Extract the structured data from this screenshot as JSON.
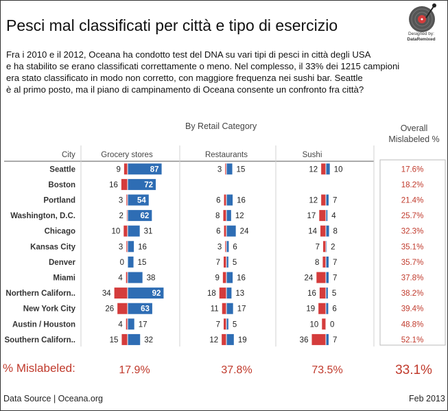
{
  "header": {
    "title": "Pesci mal classificati per città e tipo di esercizio",
    "logo_line1": "Designed by:",
    "logo_line2": "DataRemixed"
  },
  "description": [
    "Fra i 2010 e il 2012, Oceana ha condotto test del DNA su vari tipi di pesci in città degli USA",
    "e ha stabilito se erano classificati correttamente o meno. Nel complesso, il 33% dei 1215 campioni",
    "era stato classificato in modo non corretto, con maggiore frequenza nei sushi bar. Seattle",
    "è al primo posto, ma il piano di campinamento di Oceana consente un confronto fra città?"
  ],
  "colors": {
    "mislabeled": "#d43c3c",
    "correct": "#2e6db4",
    "accent_text": "#c0392b"
  },
  "chart_data": {
    "type": "bar",
    "subtitle": "By Retail Category",
    "city_header": "City",
    "overall_header": "Overall\nMislabeled %",
    "categories": [
      "Grocery stores",
      "Restaurants",
      "Sushi"
    ],
    "cities": [
      "Seattle",
      "Boston",
      "Portland",
      "Washington, D.C.",
      "Chicago",
      "Kansas City",
      "Denver",
      "Miami",
      "Northern Californ..",
      "New York City",
      "Austin / Houston",
      "Southern Californ.."
    ],
    "series": [
      {
        "name": "Grocery stores",
        "mislabeled": [
          9,
          16,
          3,
          2,
          10,
          3,
          0,
          4,
          34,
          26,
          4,
          15
        ],
        "correct": [
          87,
          72,
          54,
          62,
          31,
          16,
          15,
          38,
          92,
          63,
          17,
          32
        ]
      },
      {
        "name": "Restaurants",
        "mislabeled": [
          3,
          null,
          6,
          8,
          6,
          3,
          7,
          9,
          18,
          11,
          7,
          12
        ],
        "correct": [
          15,
          null,
          16,
          12,
          24,
          6,
          5,
          16,
          13,
          17,
          5,
          19
        ]
      },
      {
        "name": "Sushi",
        "mislabeled": [
          12,
          null,
          12,
          17,
          14,
          7,
          8,
          24,
          16,
          19,
          10,
          36
        ],
        "correct": [
          10,
          null,
          7,
          4,
          8,
          2,
          7,
          7,
          5,
          6,
          0,
          7
        ]
      }
    ],
    "overall_mislabeled": [
      "17.6%",
      "18.2%",
      "21.4%",
      "25.7%",
      "32.3%",
      "35.1%",
      "35.7%",
      "37.8%",
      "38.2%",
      "39.4%",
      "48.8%",
      "52.1%"
    ]
  },
  "summary": {
    "label": "% Mislabeled:",
    "values": [
      "17.9%",
      "37.8%",
      "73.5%"
    ],
    "overall": "33.1%"
  },
  "footer": {
    "source": "Data Source | Oceana.org",
    "date": "Feb 2013"
  }
}
